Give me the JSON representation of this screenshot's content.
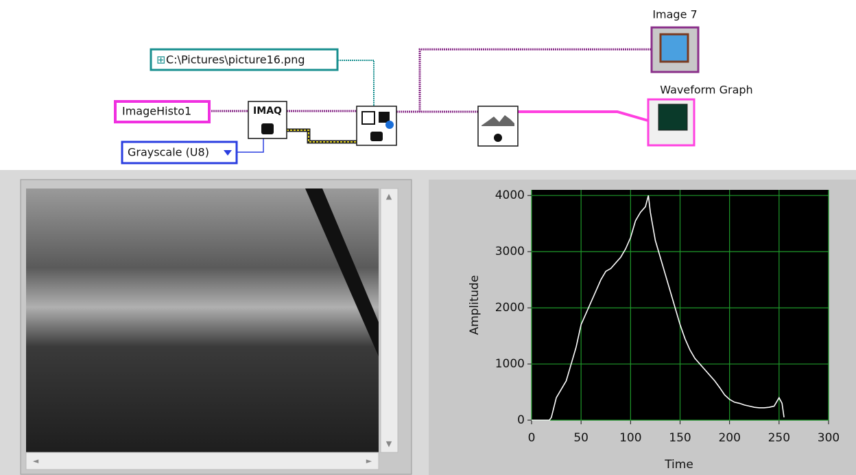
{
  "diagram": {
    "image_indicator_label": "Image 7",
    "graph_indicator_label": "Waveform Graph",
    "path_constant": "C:\\Pictures\\picture16.png",
    "image_name": "ImageHisto1",
    "image_type": "Grayscale (U8)",
    "create_icon": "IMAQ"
  },
  "graph": {
    "type": "line",
    "xlabel": "Time",
    "ylabel": "Amplitude",
    "color": "#ffffff",
    "x": [
      0,
      10,
      18,
      20,
      25,
      30,
      35,
      40,
      45,
      50,
      55,
      60,
      65,
      70,
      75,
      80,
      85,
      90,
      95,
      100,
      105,
      110,
      115,
      118,
      120,
      125,
      130,
      135,
      140,
      145,
      150,
      155,
      160,
      165,
      170,
      175,
      180,
      185,
      190,
      195,
      200,
      205,
      210,
      215,
      220,
      225,
      230,
      235,
      240,
      245,
      250,
      253,
      255
    ],
    "values": [
      0,
      0,
      0,
      50,
      400,
      550,
      700,
      1000,
      1300,
      1700,
      1900,
      2100,
      2300,
      2500,
      2650,
      2700,
      2800,
      2900,
      3050,
      3250,
      3550,
      3700,
      3800,
      4000,
      3700,
      3200,
      2900,
      2600,
      2300,
      2000,
      1700,
      1450,
      1250,
      1100,
      1000,
      900,
      800,
      700,
      580,
      450,
      370,
      320,
      300,
      270,
      250,
      230,
      220,
      220,
      230,
      250,
      400,
      300,
      50
    ],
    "xlim": [
      0,
      300
    ],
    "ylim": [
      0,
      4100
    ],
    "xticks": [
      0,
      50,
      100,
      150,
      200,
      250,
      300
    ],
    "yticks": [
      0,
      1000,
      2000,
      3000,
      4000
    ],
    "grid": true
  }
}
